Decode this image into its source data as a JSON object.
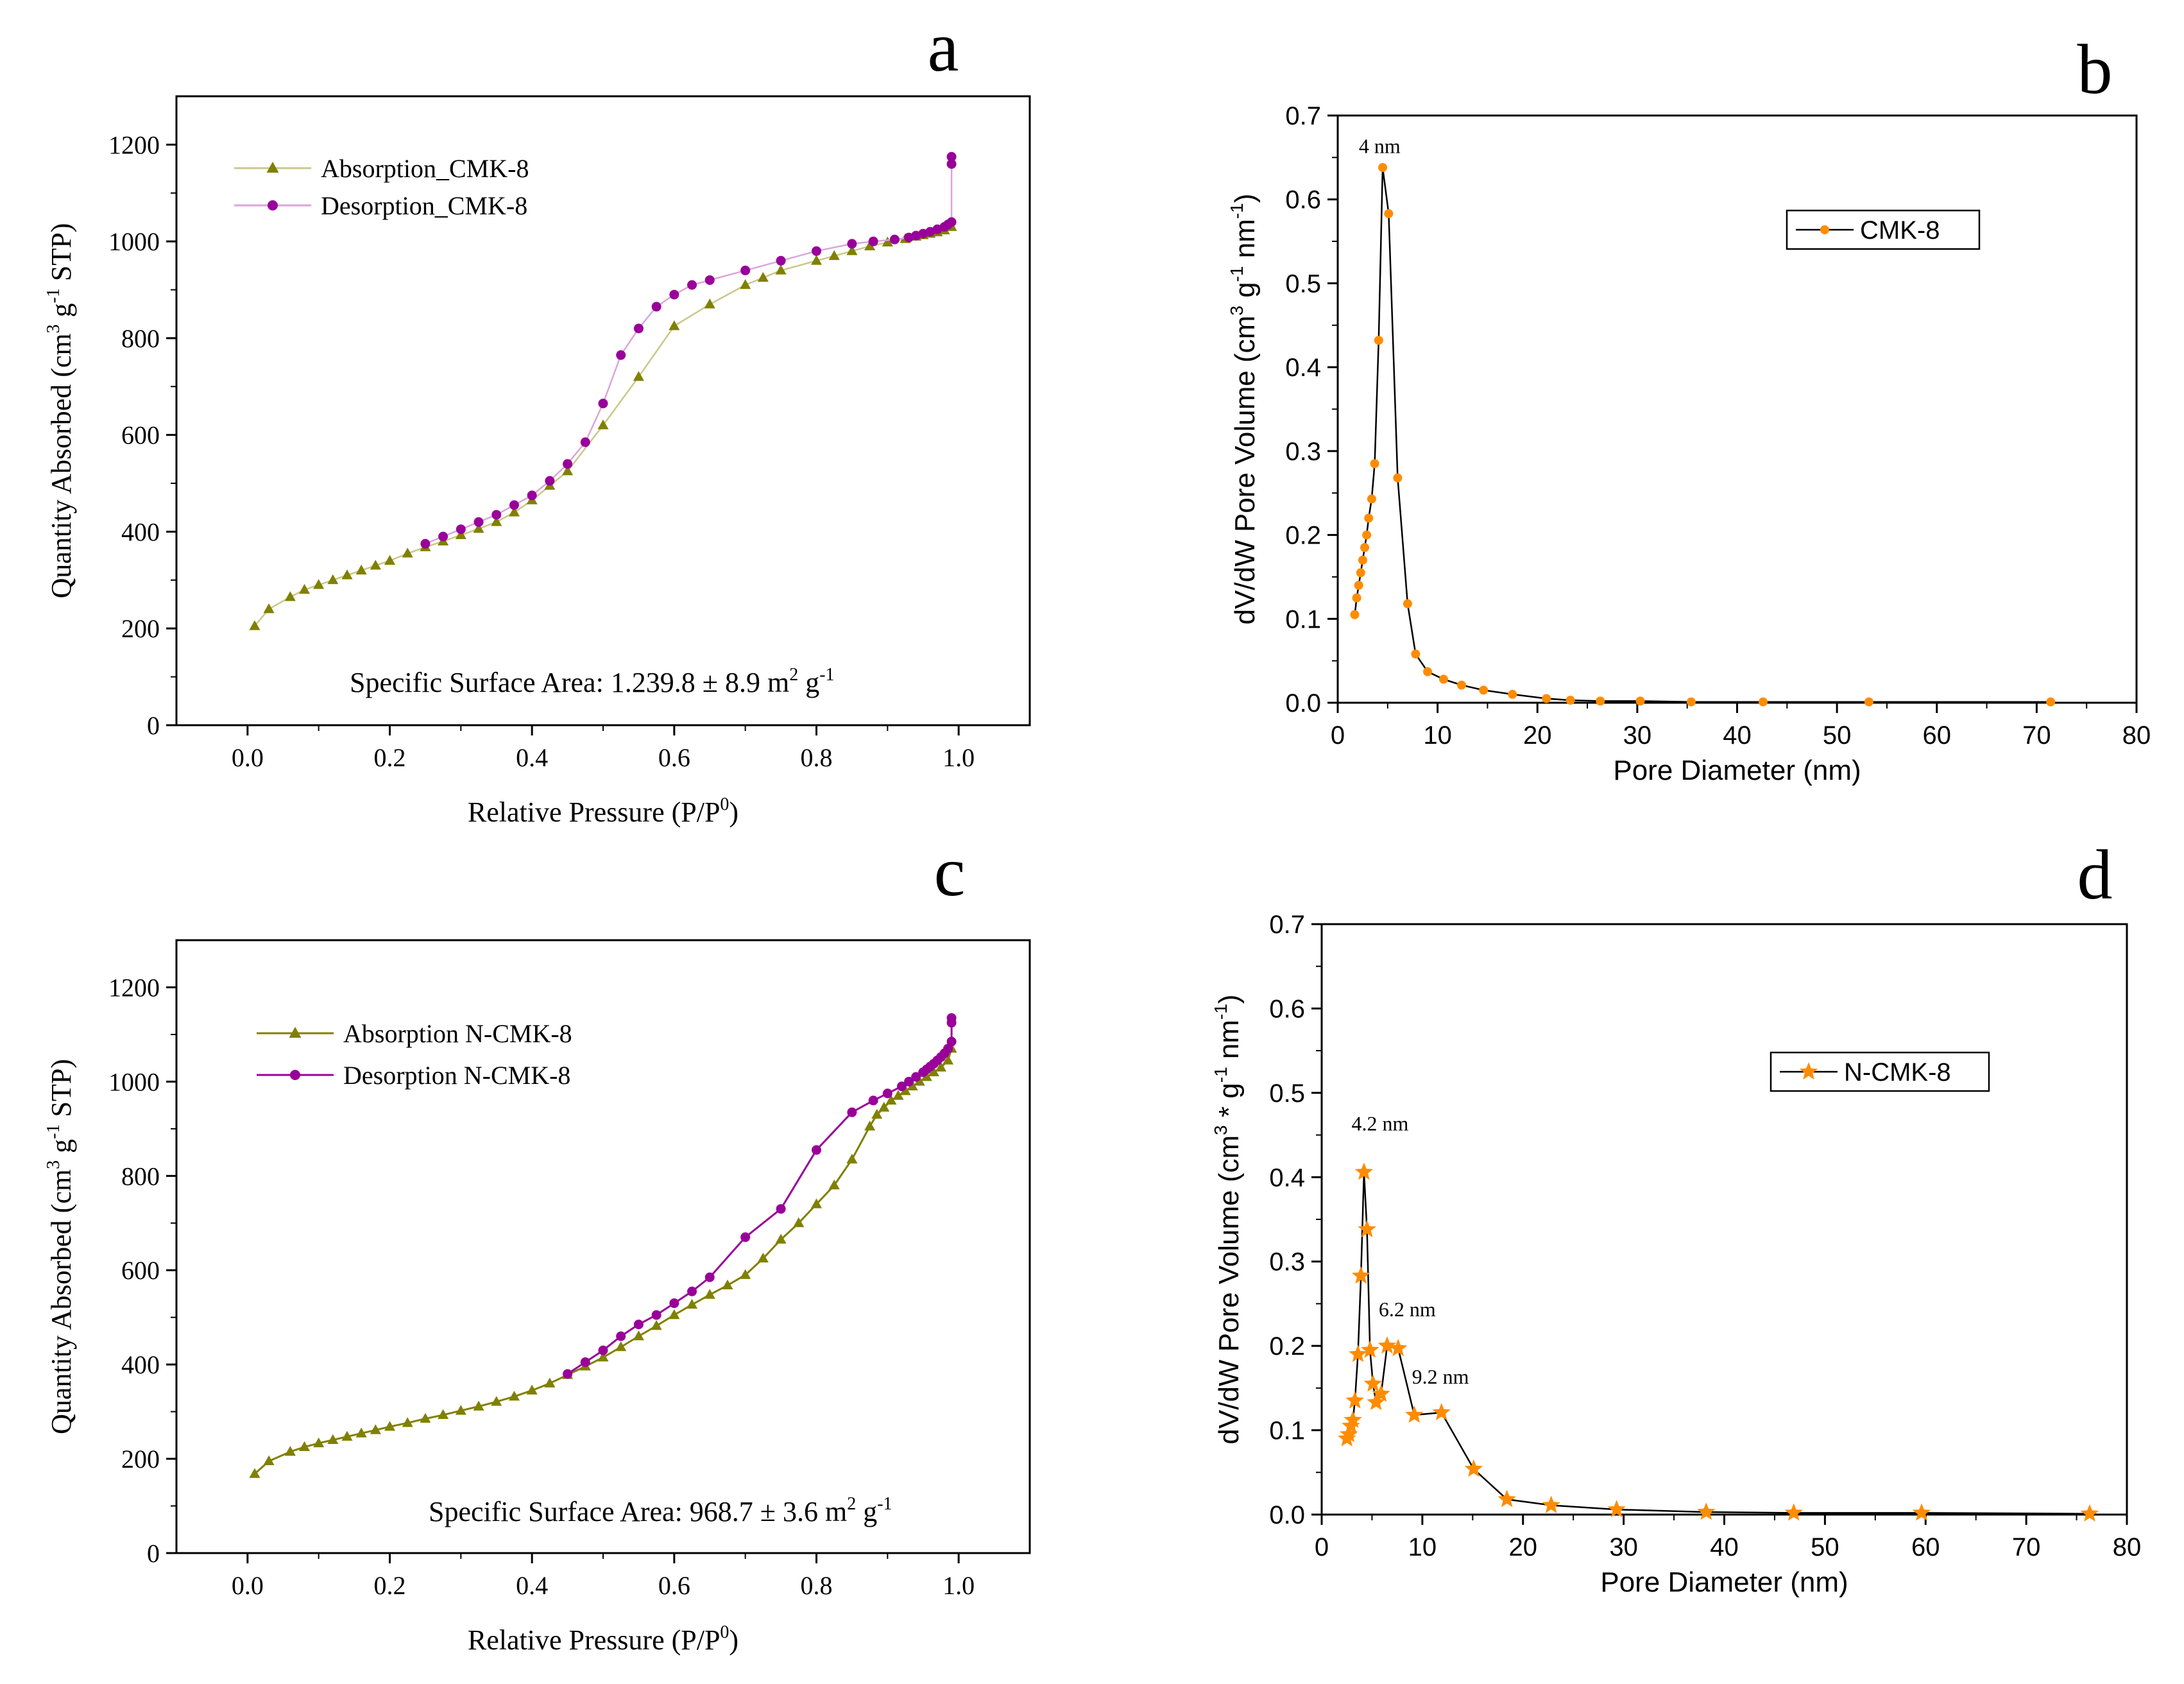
{
  "colors": {
    "absorption": "#808000",
    "absorption_line_a": "#c8c88a",
    "desorption": "#990099",
    "desorption_line_a": "#d9a6d9",
    "psd_marker": "#ff8c00",
    "psd_line": "#000000",
    "axis": "#000000"
  },
  "chart_data": [
    {
      "id": "a",
      "panel_label": "a",
      "type": "line",
      "marker_style": "triangle-circle",
      "xlabel": "Relative Pressure (P/P",
      "xlabel_sup": "0",
      "xlabel_end": ")",
      "ylabel": "Quantity Absorbed (cm",
      "ylabel_sup1": "3",
      "ylabel_mid": " g",
      "ylabel_sup2": "-1",
      "ylabel_end": " STP)",
      "xlim": [
        -0.1,
        1.1
      ],
      "ylim": [
        0,
        1300
      ],
      "xticks": [
        0.0,
        0.2,
        0.4,
        0.6,
        0.8,
        1.0
      ],
      "xtick_labels": [
        "0.0",
        "0.2",
        "0.4",
        "0.6",
        "0.8",
        "1.0"
      ],
      "yticks": [
        0,
        200,
        400,
        600,
        800,
        1000,
        1200
      ],
      "ytick_labels": [
        "0",
        "200",
        "400",
        "600",
        "800",
        "1000",
        "1200"
      ],
      "annotation": "Specific Surface Area: 1.239.8 ± 8.9 m",
      "annotation_sup1": "2",
      "annotation_mid": " g",
      "annotation_sup2": "-1",
      "legend": [
        "Absorption_CMK-8",
        "Desorption_CMK-8"
      ],
      "series": [
        {
          "name": "Absorption_CMK-8",
          "x": [
            0.01,
            0.03,
            0.06,
            0.08,
            0.1,
            0.12,
            0.14,
            0.16,
            0.18,
            0.2,
            0.225,
            0.25,
            0.275,
            0.3,
            0.325,
            0.35,
            0.375,
            0.4,
            0.425,
            0.45,
            0.5,
            0.55,
            0.6,
            0.65,
            0.7,
            0.725,
            0.75,
            0.8,
            0.825,
            0.85,
            0.875,
            0.9,
            0.925,
            0.94,
            0.95,
            0.96,
            0.97,
            0.98,
            0.99
          ],
          "values": [
            205,
            240,
            265,
            280,
            290,
            300,
            310,
            320,
            330,
            340,
            355,
            368,
            380,
            393,
            406,
            420,
            440,
            465,
            495,
            525,
            620,
            720,
            825,
            870,
            910,
            925,
            940,
            960,
            970,
            980,
            990,
            998,
            1005,
            1010,
            1013,
            1016,
            1019,
            1023,
            1030
          ]
        },
        {
          "name": "Desorption_CMK-8",
          "x": [
            0.99,
            0.99,
            0.99,
            0.985,
            0.98,
            0.97,
            0.96,
            0.95,
            0.94,
            0.93,
            0.91,
            0.88,
            0.85,
            0.8,
            0.75,
            0.7,
            0.65,
            0.625,
            0.6,
            0.575,
            0.55,
            0.525,
            0.5,
            0.475,
            0.45,
            0.425,
            0.4,
            0.375,
            0.35,
            0.325,
            0.3,
            0.275,
            0.25
          ],
          "values": [
            1175,
            1160,
            1040,
            1035,
            1030,
            1025,
            1020,
            1016,
            1012,
            1008,
            1004,
            1000,
            995,
            980,
            960,
            940,
            920,
            910,
            890,
            865,
            820,
            765,
            665,
            585,
            540,
            505,
            475,
            455,
            435,
            420,
            405,
            390,
            375
          ]
        }
      ]
    },
    {
      "id": "b",
      "panel_label": "b",
      "type": "line",
      "marker_style": "dot",
      "xlabel": "Pore Diameter (nm)",
      "ylabel": "dV/dW Pore Volume (cm",
      "ylabel_sup1": "3",
      "ylabel_mid": " g",
      "ylabel_sup2": "-1",
      "ylabel_mid2": " nm",
      "ylabel_sup3": "-1",
      "ylabel_end": ")",
      "xlim": [
        0,
        80
      ],
      "ylim": [
        0,
        0.7
      ],
      "xticks": [
        0,
        10,
        20,
        30,
        40,
        50,
        60,
        70,
        80
      ],
      "xtick_labels": [
        "0",
        "10",
        "20",
        "30",
        "40",
        "50",
        "60",
        "70",
        "80"
      ],
      "yticks": [
        0.0,
        0.1,
        0.2,
        0.3,
        0.4,
        0.5,
        0.6,
        0.7
      ],
      "ytick_labels": [
        "0.0",
        "0.1",
        "0.2",
        "0.3",
        "0.4",
        "0.5",
        "0.6",
        "0.7"
      ],
      "peak_annotations": [
        {
          "text": "4 nm",
          "x": 4.2,
          "y": 0.64
        }
      ],
      "legend": [
        "CMK-8"
      ],
      "series": [
        {
          "name": "CMK-8",
          "x": [
            1.7,
            1.9,
            2.1,
            2.3,
            2.5,
            2.7,
            2.9,
            3.1,
            3.4,
            3.7,
            4.1,
            4.5,
            5.1,
            6.0,
            7.0,
            7.8,
            9.0,
            10.6,
            12.4,
            14.6,
            17.5,
            20.9,
            23.3,
            26.3,
            30.3,
            35.4,
            42.6,
            53.2,
            71.4
          ],
          "values": [
            0.105,
            0.125,
            0.14,
            0.155,
            0.17,
            0.185,
            0.2,
            0.22,
            0.243,
            0.285,
            0.432,
            0.638,
            0.583,
            0.268,
            0.118,
            0.058,
            0.037,
            0.028,
            0.021,
            0.015,
            0.01,
            0.005,
            0.003,
            0.002,
            0.002,
            0.001,
            0.001,
            0.001,
            0.001
          ]
        }
      ]
    },
    {
      "id": "c",
      "panel_label": "c",
      "type": "line",
      "marker_style": "triangle-circle",
      "xlabel": "Relative Pressure (P/P",
      "xlabel_sup": "0",
      "xlabel_end": ")",
      "ylabel": "Quantity Absorbed (cm",
      "ylabel_sup1": "3",
      "ylabel_mid": " g",
      "ylabel_sup2": "-1",
      "ylabel_end": " STP)",
      "xlim": [
        -0.1,
        1.1
      ],
      "ylim": [
        0,
        1300
      ],
      "xticks": [
        0.0,
        0.2,
        0.4,
        0.6,
        0.8,
        1.0
      ],
      "xtick_labels": [
        "0.0",
        "0.2",
        "0.4",
        "0.6",
        "0.8",
        "1.0"
      ],
      "yticks": [
        0,
        200,
        400,
        600,
        800,
        1000,
        1200
      ],
      "ytick_labels": [
        "0",
        "200",
        "400",
        "600",
        "800",
        "1000",
        "1200"
      ],
      "annotation": "Specific Surface Area: 968.7 ± 3.6 m",
      "annotation_sup1": "2",
      "annotation_mid": " g",
      "annotation_sup2": "-1",
      "legend": [
        "Absorption N-CMK-8",
        "Desorption N-CMK-8"
      ],
      "series": [
        {
          "name": "Absorption N-CMK-8",
          "x": [
            0.01,
            0.03,
            0.06,
            0.08,
            0.1,
            0.12,
            0.14,
            0.16,
            0.18,
            0.2,
            0.225,
            0.25,
            0.275,
            0.3,
            0.325,
            0.35,
            0.375,
            0.4,
            0.425,
            0.45,
            0.475,
            0.5,
            0.525,
            0.55,
            0.575,
            0.6,
            0.625,
            0.65,
            0.675,
            0.7,
            0.725,
            0.75,
            0.775,
            0.8,
            0.825,
            0.85,
            0.875,
            0.885,
            0.895,
            0.905,
            0.915,
            0.925,
            0.935,
            0.945,
            0.955,
            0.965,
            0.975,
            0.985,
            0.99
          ],
          "values": [
            168,
            195,
            215,
            225,
            233,
            240,
            247,
            254,
            261,
            268,
            276,
            285,
            293,
            302,
            311,
            321,
            332,
            345,
            360,
            378,
            396,
            415,
            437,
            460,
            482,
            505,
            527,
            548,
            568,
            590,
            625,
            665,
            700,
            740,
            780,
            835,
            905,
            930,
            945,
            960,
            970,
            980,
            990,
            1000,
            1010,
            1020,
            1030,
            1045,
            1070
          ]
        },
        {
          "name": "Desorption N-CMK-8",
          "x": [
            0.99,
            0.99,
            0.99,
            0.985,
            0.98,
            0.975,
            0.97,
            0.965,
            0.96,
            0.955,
            0.95,
            0.94,
            0.93,
            0.92,
            0.9,
            0.88,
            0.85,
            0.8,
            0.75,
            0.7,
            0.65,
            0.625,
            0.6,
            0.575,
            0.55,
            0.525,
            0.5,
            0.475,
            0.45
          ],
          "values": [
            1135,
            1125,
            1085,
            1070,
            1060,
            1052,
            1045,
            1038,
            1032,
            1026,
            1020,
            1010,
            1000,
            990,
            975,
            960,
            935,
            855,
            730,
            670,
            585,
            555,
            530,
            505,
            485,
            460,
            430,
            405,
            380
          ]
        }
      ]
    },
    {
      "id": "d",
      "panel_label": "d",
      "type": "line",
      "marker_style": "star",
      "xlabel": "Pore Diameter (nm)",
      "ylabel": "dV/dW Pore Volume (cm",
      "ylabel_sup1": "3",
      "ylabel_mid": " * g",
      "ylabel_sup2": "-1",
      "ylabel_mid2": " nm",
      "ylabel_sup3": "-1",
      "ylabel_end": ")",
      "xlim": [
        0,
        80
      ],
      "ylim": [
        0,
        0.7
      ],
      "xticks": [
        0,
        10,
        20,
        30,
        40,
        50,
        60,
        70,
        80
      ],
      "xtick_labels": [
        "0",
        "10",
        "20",
        "30",
        "40",
        "50",
        "60",
        "70",
        "80"
      ],
      "yticks": [
        0.0,
        0.1,
        0.2,
        0.3,
        0.4,
        0.5,
        0.6,
        0.7
      ],
      "ytick_labels": [
        "0.0",
        "0.1",
        "0.2",
        "0.3",
        "0.4",
        "0.5",
        "0.6",
        "0.7"
      ],
      "peak_annotations": [
        {
          "text": "4.2 nm",
          "x": 5.8,
          "y": 0.44
        },
        {
          "text": "6.2 nm",
          "x": 8.5,
          "y": 0.22
        },
        {
          "text": "9.2 nm",
          "x": 11.8,
          "y": 0.14
        }
      ],
      "legend": [
        "N-CMK-8"
      ],
      "series": [
        {
          "name": "N-CMK-8",
          "x": [
            2.5,
            2.7,
            2.9,
            3.1,
            3.3,
            3.6,
            3.9,
            4.2,
            4.5,
            4.8,
            5.1,
            5.4,
            5.9,
            6.5,
            7.6,
            9.2,
            11.9,
            15.1,
            18.4,
            22.8,
            29.3,
            38.2,
            46.9,
            59.6,
            76.3
          ],
          "values": [
            0.09,
            0.095,
            0.105,
            0.112,
            0.135,
            0.19,
            0.283,
            0.406,
            0.338,
            0.195,
            0.155,
            0.133,
            0.143,
            0.2,
            0.197,
            0.118,
            0.121,
            0.054,
            0.018,
            0.011,
            0.006,
            0.003,
            0.002,
            0.002,
            0.001
          ]
        }
      ]
    }
  ]
}
